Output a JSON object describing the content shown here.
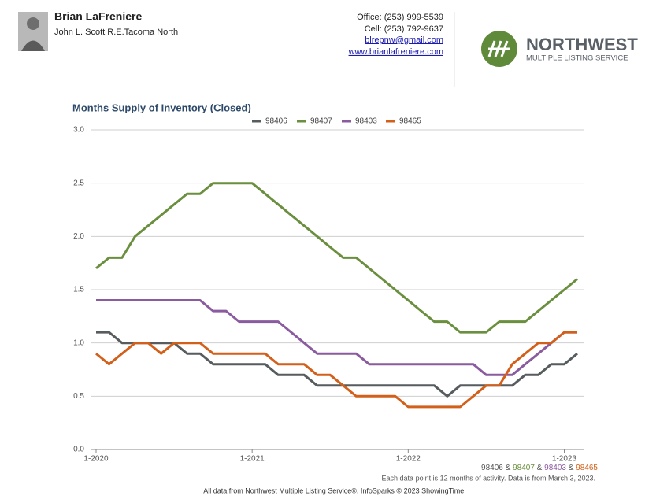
{
  "header": {
    "name": "Brian LaFreniere",
    "company": "John L. Scott R.E.Tacoma North",
    "contact": [
      "Office: (253) 999-5539",
      "Cell: (253) 792-9637"
    ],
    "links": [
      "blrepnw@gmail.com",
      "www.brianlafreniere.com"
    ],
    "logo_title": "NORTHWEST",
    "logo_subtitle": "MULTIPLE LISTING SERVICE"
  },
  "chart_data": {
    "type": "line",
    "title": "Months Supply of Inventory (Closed)",
    "categories": [
      "1-2020",
      null,
      null,
      null,
      null,
      null,
      null,
      null,
      null,
      null,
      null,
      null,
      "1-2021",
      null,
      null,
      null,
      null,
      null,
      null,
      null,
      null,
      null,
      null,
      null,
      "1-2022",
      null,
      null,
      null,
      null,
      null,
      null,
      null,
      null,
      null,
      null,
      null,
      "1-2023",
      null
    ],
    "series": [
      {
        "name": "98406",
        "color": "#575c5e",
        "values": [
          1.1,
          1.1,
          1.0,
          1.0,
          1.0,
          1.0,
          1.0,
          0.9,
          0.9,
          0.8,
          0.8,
          0.8,
          0.8,
          0.8,
          0.7,
          0.7,
          0.7,
          0.6,
          0.6,
          0.6,
          0.6,
          0.6,
          0.6,
          0.6,
          0.6,
          0.6,
          0.6,
          0.5,
          0.6,
          0.6,
          0.6,
          0.6,
          0.6,
          0.7,
          0.7,
          0.8,
          0.8,
          0.9
        ]
      },
      {
        "name": "98407",
        "color": "#6a8f3e",
        "values": [
          1.7,
          1.8,
          1.8,
          2.0,
          2.1,
          2.2,
          2.3,
          2.4,
          2.4,
          2.5,
          2.5,
          2.5,
          2.5,
          2.4,
          2.3,
          2.2,
          2.1,
          2.0,
          1.9,
          1.8,
          1.8,
          1.7,
          1.6,
          1.5,
          1.4,
          1.3,
          1.2,
          1.2,
          1.1,
          1.1,
          1.1,
          1.2,
          1.2,
          1.2,
          1.3,
          1.4,
          1.5,
          1.6
        ]
      },
      {
        "name": "98403",
        "color": "#8b5b9f",
        "values": [
          1.4,
          1.4,
          1.4,
          1.4,
          1.4,
          1.4,
          1.4,
          1.4,
          1.4,
          1.3,
          1.3,
          1.2,
          1.2,
          1.2,
          1.2,
          1.1,
          1.0,
          0.9,
          0.9,
          0.9,
          0.9,
          0.8,
          0.8,
          0.8,
          0.8,
          0.8,
          0.8,
          0.8,
          0.8,
          0.8,
          0.7,
          0.7,
          0.7,
          0.8,
          0.9,
          1.0,
          1.1,
          1.1
        ]
      },
      {
        "name": "98465",
        "color": "#d2601a",
        "values": [
          0.9,
          0.8,
          0.9,
          1.0,
          1.0,
          0.9,
          1.0,
          1.0,
          1.0,
          0.9,
          0.9,
          0.9,
          0.9,
          0.9,
          0.8,
          0.8,
          0.8,
          0.7,
          0.7,
          0.6,
          0.5,
          0.5,
          0.5,
          0.5,
          0.4,
          0.4,
          0.4,
          0.4,
          0.4,
          0.5,
          0.6,
          0.6,
          0.8,
          0.9,
          1.0,
          1.0,
          1.1,
          1.1
        ]
      }
    ],
    "ylim": [
      0,
      3
    ],
    "yticks": [
      {
        "value": 0,
        "label": "0.0"
      },
      0.5,
      {
        "value": 1,
        "label": "1.0"
      },
      1.5,
      {
        "value": 2,
        "label": "2.0"
      },
      2.5,
      {
        "value": 3,
        "label": "3.0"
      }
    ],
    "grid": true,
    "legend": "top",
    "legend_joiner": "&",
    "note": "Each data point is 12 months of activity. Data is from March 3, 2023."
  },
  "footer": "All data from Northwest Multiple Listing Service®. InfoSparks © 2023 ShowingTime."
}
